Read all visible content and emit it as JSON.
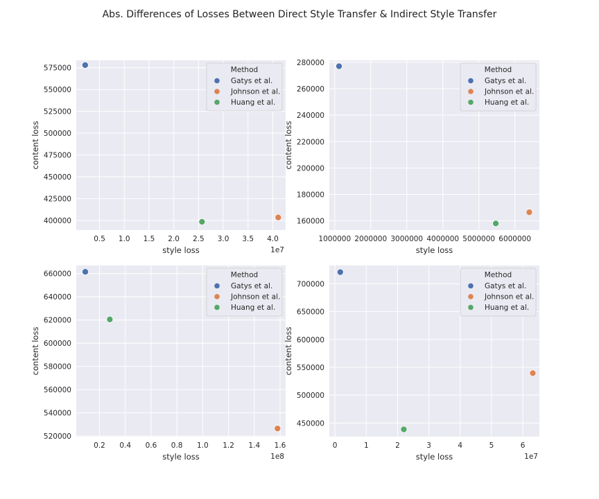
{
  "suptitle": "Abs. Differences of Losses Between Direct Style Transfer & Indirect Style Transfer",
  "legend_title": "Method",
  "methods": [
    {
      "name": "Gatys et al.",
      "color": "#4c72b0"
    },
    {
      "name": "Johnson et al.",
      "color": "#dd8452"
    },
    {
      "name": "Huang et al.",
      "color": "#55a868"
    }
  ],
  "chart_data": [
    {
      "type": "scatter",
      "xlabel": "style loss",
      "ylabel": "content loss",
      "x_offset_label": "1e7",
      "xlim": [
        0.03,
        4.26
      ],
      "ylim": [
        389000,
        583500
      ],
      "x_ticks": [
        0.5,
        1.0,
        1.5,
        2.0,
        2.5,
        3.0,
        3.5,
        4.0
      ],
      "x_tick_labels": [
        "0.5",
        "1.0",
        "1.5",
        "2.0",
        "2.5",
        "3.0",
        "3.5",
        "4.0"
      ],
      "y_ticks": [
        400000,
        425000,
        450000,
        475000,
        500000,
        525000,
        550000,
        575000
      ],
      "y_tick_labels": [
        "400000",
        "425000",
        "450000",
        "475000",
        "500000",
        "525000",
        "550000",
        "575000"
      ],
      "legend_position": "top-right",
      "grid": true,
      "points": [
        {
          "method": "Gatys et al.",
          "x": 0.21,
          "y": 578000
        },
        {
          "method": "Johnson et al.",
          "x": 4.11,
          "y": 403500
        },
        {
          "method": "Huang et al.",
          "x": 2.57,
          "y": 398500
        }
      ]
    },
    {
      "type": "scatter",
      "xlabel": "style loss",
      "ylabel": "content loss",
      "x_offset_label": "",
      "xlim": [
        850000,
        6680000
      ],
      "ylim": [
        153000,
        281500
      ],
      "x_ticks": [
        1000000,
        2000000,
        3000000,
        4000000,
        5000000,
        6000000
      ],
      "x_tick_labels": [
        "1000000",
        "2000000",
        "3000000",
        "4000000",
        "5000000",
        "6000000"
      ],
      "y_ticks": [
        160000,
        180000,
        200000,
        220000,
        240000,
        260000,
        280000
      ],
      "y_tick_labels": [
        "160000",
        "180000",
        "200000",
        "220000",
        "240000",
        "260000",
        "280000"
      ],
      "legend_position": "top-right",
      "grid": true,
      "points": [
        {
          "method": "Gatys et al.",
          "x": 1120000,
          "y": 277000
        },
        {
          "method": "Johnson et al.",
          "x": 6400000,
          "y": 166500
        },
        {
          "method": "Huang et al.",
          "x": 5470000,
          "y": 158000
        }
      ]
    },
    {
      "type": "scatter",
      "xlabel": "style loss",
      "ylabel": "content loss",
      "x_offset_label": "1e8",
      "xlim": [
        0.02,
        1.643
      ],
      "ylim": [
        519500,
        667000
      ],
      "x_ticks": [
        0.2,
        0.4,
        0.6,
        0.8,
        1.0,
        1.2,
        1.4,
        1.6
      ],
      "x_tick_labels": [
        "0.2",
        "0.4",
        "0.6",
        "0.8",
        "1.0",
        "1.2",
        "1.4",
        "1.6"
      ],
      "y_ticks": [
        520000,
        540000,
        560000,
        580000,
        600000,
        620000,
        640000,
        660000
      ],
      "y_tick_labels": [
        "520000",
        "540000",
        "560000",
        "580000",
        "600000",
        "620000",
        "640000",
        "660000"
      ],
      "legend_position": "top-right",
      "grid": true,
      "points": [
        {
          "method": "Gatys et al.",
          "x": 0.09,
          "y": 661500
        },
        {
          "method": "Johnson et al.",
          "x": 1.58,
          "y": 526500
        },
        {
          "method": "Huang et al.",
          "x": 0.28,
          "y": 620500
        }
      ]
    },
    {
      "type": "scatter",
      "xlabel": "style loss",
      "ylabel": "content loss",
      "x_offset_label": "1e7",
      "xlim": [
        -0.18,
        6.53
      ],
      "ylim": [
        425500,
        733000
      ],
      "x_ticks": [
        0,
        1,
        2,
        3,
        4,
        5,
        6
      ],
      "x_tick_labels": [
        "0",
        "1",
        "2",
        "3",
        "4",
        "5",
        "6"
      ],
      "y_ticks": [
        450000,
        500000,
        550000,
        600000,
        650000,
        700000
      ],
      "y_tick_labels": [
        "450000",
        "500000",
        "550000",
        "600000",
        "650000",
        "700000"
      ],
      "legend_position": "top-right",
      "grid": true,
      "points": [
        {
          "method": "Gatys et al.",
          "x": 0.17,
          "y": 721000
        },
        {
          "method": "Johnson et al.",
          "x": 6.32,
          "y": 539500
        },
        {
          "method": "Huang et al.",
          "x": 2.2,
          "y": 438500
        }
      ]
    }
  ]
}
